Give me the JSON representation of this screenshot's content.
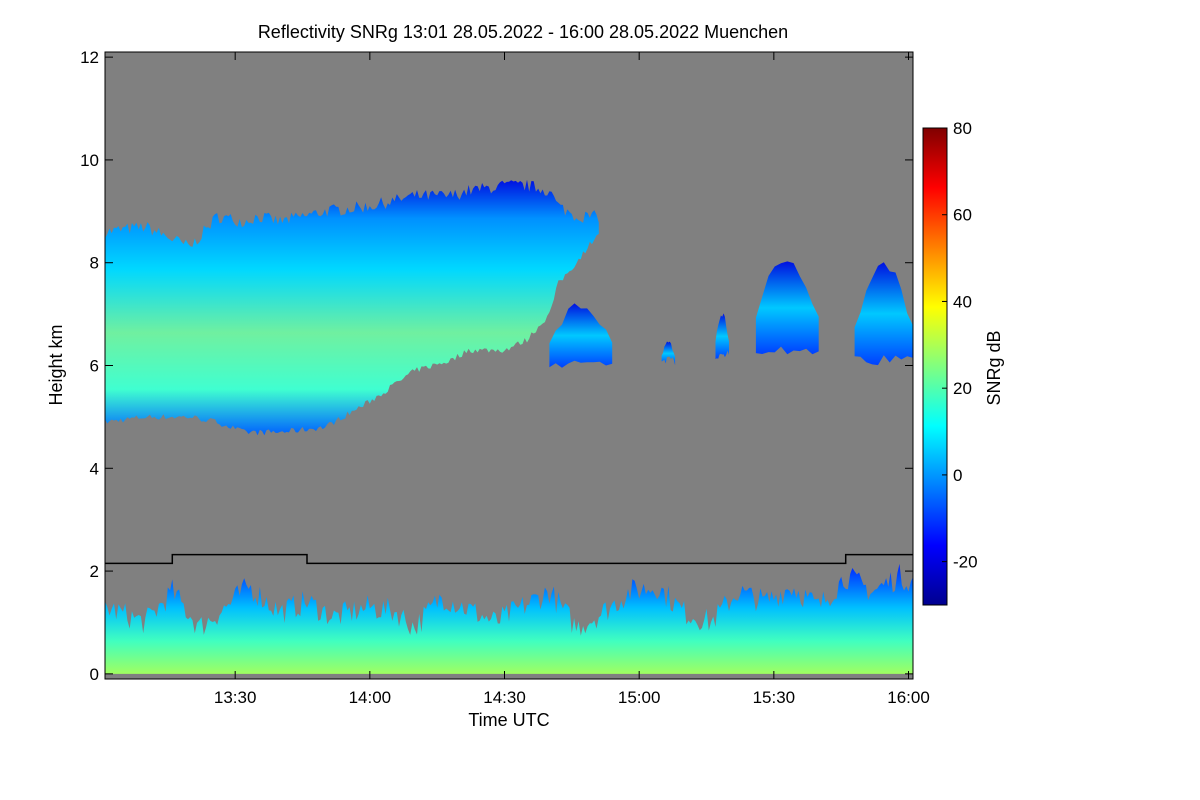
{
  "chart_data": {
    "type": "heatmap",
    "title": "Reflectivity SNRg   13:01 28.05.2022 - 16:00 28.05.2022 Muenchen",
    "xlabel": "Time UTC",
    "ylabel": "Height km",
    "x_range_minutes": [
      781,
      961
    ],
    "x_ticks": [
      {
        "label": "13:30",
        "minutes": 810
      },
      {
        "label": "14:00",
        "minutes": 840
      },
      {
        "label": "14:30",
        "minutes": 870
      },
      {
        "label": "15:00",
        "minutes": 900
      },
      {
        "label": "15:30",
        "minutes": 930
      },
      {
        "label": "16:00",
        "minutes": 960
      }
    ],
    "ylim": [
      -0.1,
      12.1
    ],
    "y_ticks": [
      0,
      2,
      4,
      6,
      8,
      10,
      12
    ],
    "colorbar": {
      "label": "SNRg dB",
      "range": [
        -30,
        80
      ],
      "ticks": [
        -20,
        0,
        20,
        40,
        60,
        80
      ],
      "colormap": [
        "#00008f",
        "#0000ff",
        "#0080ff",
        "#00ffff",
        "#80ff80",
        "#ffff00",
        "#ff8000",
        "#ff0000",
        "#800000"
      ]
    },
    "background_color": "#808080",
    "cloud_layer": {
      "description_unit": "km",
      "time_minutes": [
        781,
        790,
        800,
        806,
        812,
        815,
        820,
        830,
        840,
        845,
        850,
        858,
        862,
        870,
        875,
        880,
        882,
        886,
        891
      ],
      "top_km": [
        8.6,
        8.7,
        8.3,
        8.9,
        8.8,
        8.9,
        8.8,
        9.0,
        9.1,
        9.2,
        9.3,
        9.3,
        9.4,
        9.5,
        9.5,
        9.4,
        9.1,
        8.9,
        8.9
      ],
      "bottom_km": [
        4.9,
        5.0,
        5.0,
        4.9,
        4.7,
        4.7,
        4.7,
        4.8,
        5.3,
        5.6,
        5.9,
        6.1,
        6.3,
        6.3,
        6.5,
        7.0,
        7.6,
        8.0,
        8.6
      ],
      "peak_snr_db": 18
    },
    "scattered_cloud": [
      {
        "t0": 880,
        "t1": 894,
        "bottom_km": 5.9,
        "top_km": 7.3
      },
      {
        "t0": 905,
        "t1": 908,
        "bottom_km": 6.0,
        "top_km": 6.5
      },
      {
        "t0": 917,
        "t1": 920,
        "bottom_km": 6.1,
        "top_km": 7.1
      },
      {
        "t0": 926,
        "t1": 940,
        "bottom_km": 6.2,
        "top_km": 8.3
      },
      {
        "t0": 948,
        "t1": 961,
        "bottom_km": 6.0,
        "top_km": 8.1
      }
    ],
    "boundary_layer": {
      "time_minutes": [
        781,
        790,
        796,
        802,
        808,
        813,
        820,
        826,
        832,
        840,
        846,
        850,
        856,
        861,
        868,
        874,
        880,
        886,
        892,
        898,
        904,
        910,
        916,
        922,
        928,
        934,
        940,
        946,
        952,
        958,
        961
      ],
      "top_km": [
        1.3,
        1.0,
        1.6,
        0.9,
        1.3,
        1.7,
        1.2,
        1.4,
        1.1,
        1.3,
        1.2,
        0.9,
        1.5,
        1.3,
        1.0,
        1.3,
        1.6,
        0.9,
        1.2,
        1.6,
        1.7,
        1.2,
        1.0,
        1.6,
        1.4,
        1.7,
        1.3,
        1.9,
        1.6,
        1.9,
        1.8
      ],
      "peak_snr_db": 20
    },
    "black_line": {
      "time_minutes": [
        781,
        796,
        796,
        826,
        826,
        946,
        946,
        961
      ],
      "height_km": [
        2.15,
        2.15,
        2.32,
        2.32,
        2.15,
        2.15,
        2.32,
        2.32
      ]
    }
  }
}
